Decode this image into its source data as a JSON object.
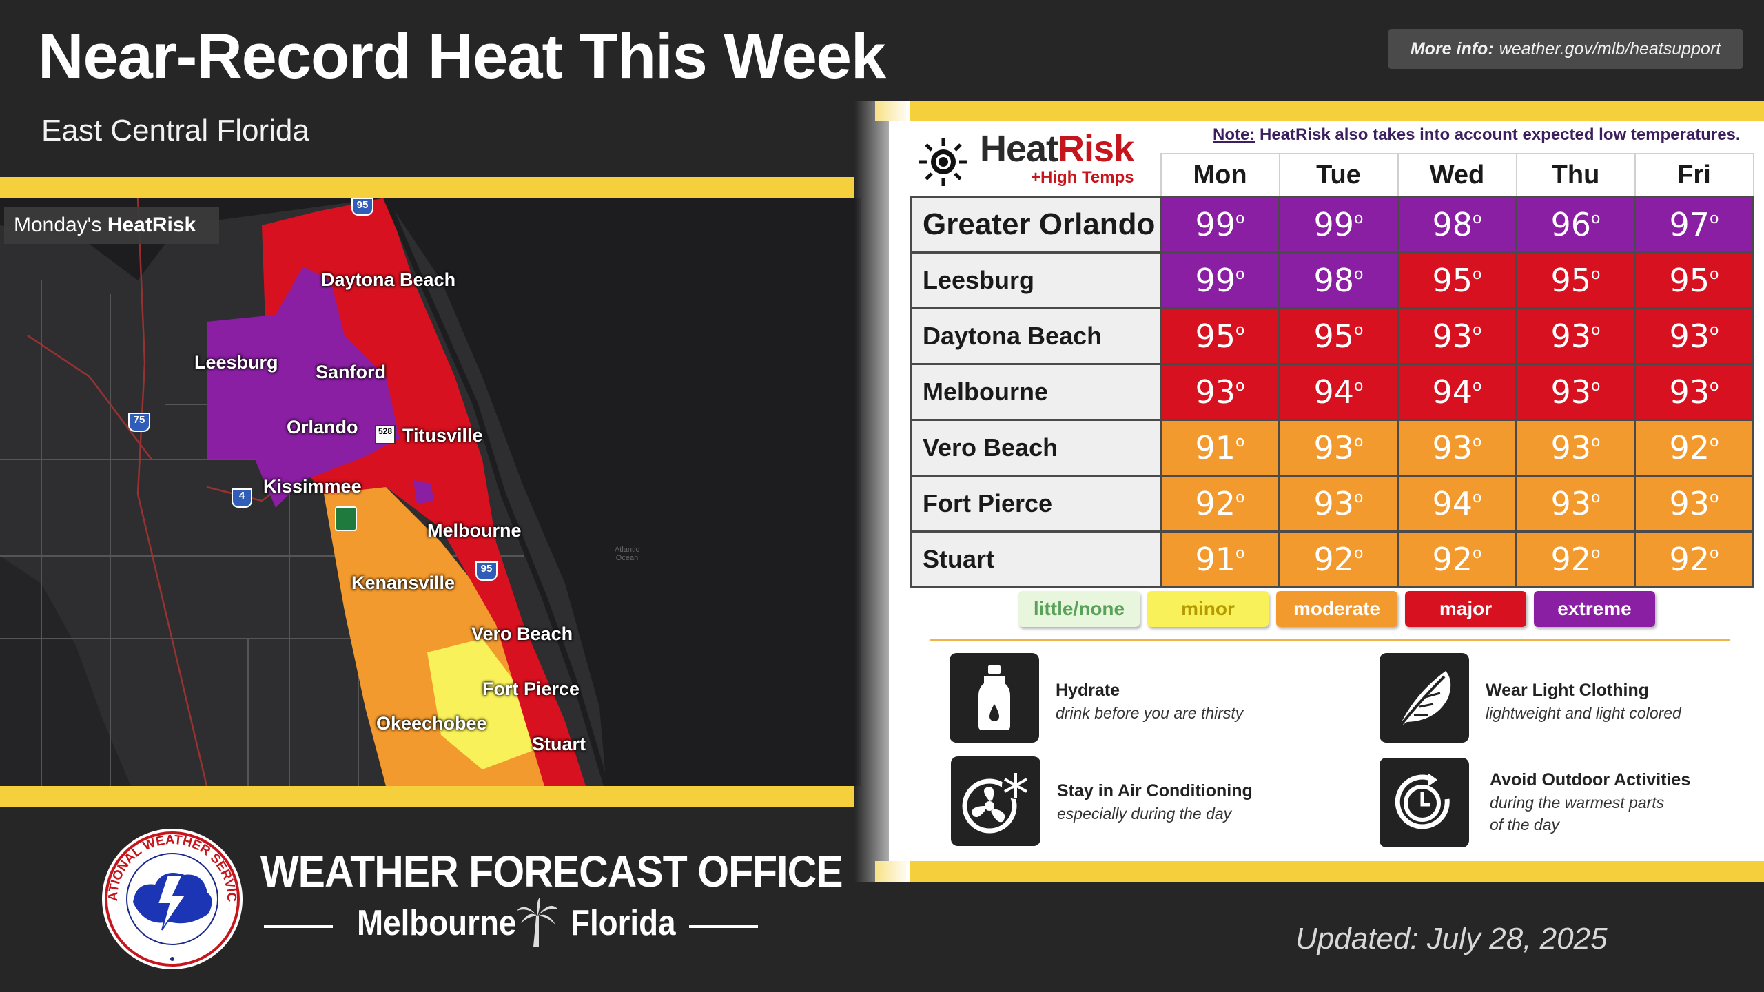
{
  "header": {
    "title": "Near-Record Heat This Week",
    "subtitle": "East Central Florida",
    "more_info_label": "More info:",
    "more_info_url": "weather.gov/mlb/heatsupport"
  },
  "map": {
    "label_prefix": "Monday's",
    "label_bold": "HeatRisk",
    "cities": [
      {
        "name": "Daytona Beach"
      },
      {
        "name": "Leesburg"
      },
      {
        "name": "Sanford"
      },
      {
        "name": "Orlando"
      },
      {
        "name": "Titusville"
      },
      {
        "name": "Kissimmee"
      },
      {
        "name": "Melbourne"
      },
      {
        "name": "Kenansville"
      },
      {
        "name": "Vero Beach"
      },
      {
        "name": "Fort Pierce"
      },
      {
        "name": "Okeechobee"
      },
      {
        "name": "Stuart"
      }
    ],
    "shields": [
      "95",
      "75",
      "4",
      "95",
      "528"
    ],
    "ocean_label": "Atlantic Ocean"
  },
  "heatrisk": {
    "logo_heat": "Heat",
    "logo_risk": "Risk",
    "logo_sub": "+High Temps",
    "note_label": "Note:",
    "note_text": "HeatRisk also takes into account expected low temperatures.",
    "days": [
      "Mon",
      "Tue",
      "Wed",
      "Thu",
      "Fri"
    ],
    "colors": {
      "little": "#e8f6dd",
      "minor": "#f8f15a",
      "moderate": "#f39a2e",
      "major": "#d7111f",
      "extreme": "#8a1fa3"
    },
    "rows": [
      {
        "location": "Greater Orlando",
        "temps": [
          "99",
          "99",
          "98",
          "96",
          "97"
        ],
        "risk": [
          "extreme",
          "extreme",
          "extreme",
          "extreme",
          "extreme"
        ]
      },
      {
        "location": "Leesburg",
        "temps": [
          "99",
          "98",
          "95",
          "95",
          "95"
        ],
        "risk": [
          "extreme",
          "extreme",
          "major",
          "major",
          "major"
        ]
      },
      {
        "location": "Daytona Beach",
        "temps": [
          "95",
          "95",
          "93",
          "93",
          "93"
        ],
        "risk": [
          "major",
          "major",
          "major",
          "major",
          "major"
        ]
      },
      {
        "location": "Melbourne",
        "temps": [
          "93",
          "94",
          "94",
          "93",
          "93"
        ],
        "risk": [
          "major",
          "major",
          "major",
          "major",
          "major"
        ]
      },
      {
        "location": "Vero Beach",
        "temps": [
          "91",
          "93",
          "93",
          "93",
          "92"
        ],
        "risk": [
          "moderate",
          "moderate",
          "moderate",
          "moderate",
          "moderate"
        ]
      },
      {
        "location": "Fort Pierce",
        "temps": [
          "92",
          "93",
          "94",
          "93",
          "93"
        ],
        "risk": [
          "moderate",
          "moderate",
          "moderate",
          "moderate",
          "moderate"
        ]
      },
      {
        "location": "Stuart",
        "temps": [
          "91",
          "92",
          "92",
          "92",
          "92"
        ],
        "risk": [
          "moderate",
          "moderate",
          "moderate",
          "moderate",
          "moderate"
        ]
      }
    ],
    "legend": [
      {
        "key": "little",
        "label": "little/none",
        "text_color": "#5aa25a"
      },
      {
        "key": "minor",
        "label": "minor",
        "text_color": "#b59a00"
      },
      {
        "key": "moderate",
        "label": "moderate",
        "text_color": "#ffffff"
      },
      {
        "key": "major",
        "label": "major",
        "text_color": "#ffffff"
      },
      {
        "key": "extreme",
        "label": "extreme",
        "text_color": "#ffffff"
      }
    ]
  },
  "tips": [
    {
      "icon": "water-bottle-icon",
      "title": "Hydrate",
      "sub": [
        "drink before you are thirsty"
      ]
    },
    {
      "icon": "feather-icon",
      "title": "Wear Light Clothing",
      "sub": [
        "lightweight and light colored"
      ]
    },
    {
      "icon": "air-conditioning-icon",
      "title": "Stay in Air Conditioning",
      "sub": [
        "especially during the day"
      ]
    },
    {
      "icon": "clock-icon",
      "title": "Avoid Outdoor Activities",
      "sub": [
        "during the warmest parts",
        "of the day"
      ]
    }
  ],
  "footer": {
    "office_title": "WEATHER FORECAST OFFICE",
    "city": "Melbourne",
    "state": "Florida",
    "logo_text": "NATIONAL WEATHER SERVICE",
    "updated": "Updated: July 28, 2025"
  }
}
